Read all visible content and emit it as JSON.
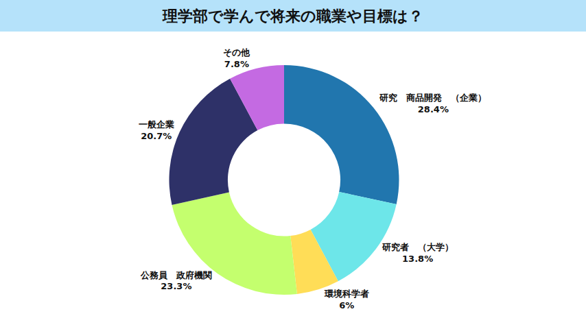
{
  "chart_data": {
    "type": "pie",
    "title": "理学部で学んで将来の職業や目標は？",
    "categories": [
      "研究　商品開発　（企業）",
      "研究者　（大学）",
      "環境科学者",
      "公務員　政府機関",
      "一般企業",
      "その他"
    ],
    "values": [
      28.4,
      13.8,
      6,
      23.3,
      20.7,
      7.8
    ],
    "value_labels": [
      "28.4%",
      "13.8%",
      "6%",
      "23.3%",
      "20.7%",
      "7.8%"
    ],
    "colors": [
      "#2176ae",
      "#6de6e9",
      "#ffdd57",
      "#c4ff6e",
      "#2e3168",
      "#c46ae2"
    ],
    "data_labels": true
  }
}
